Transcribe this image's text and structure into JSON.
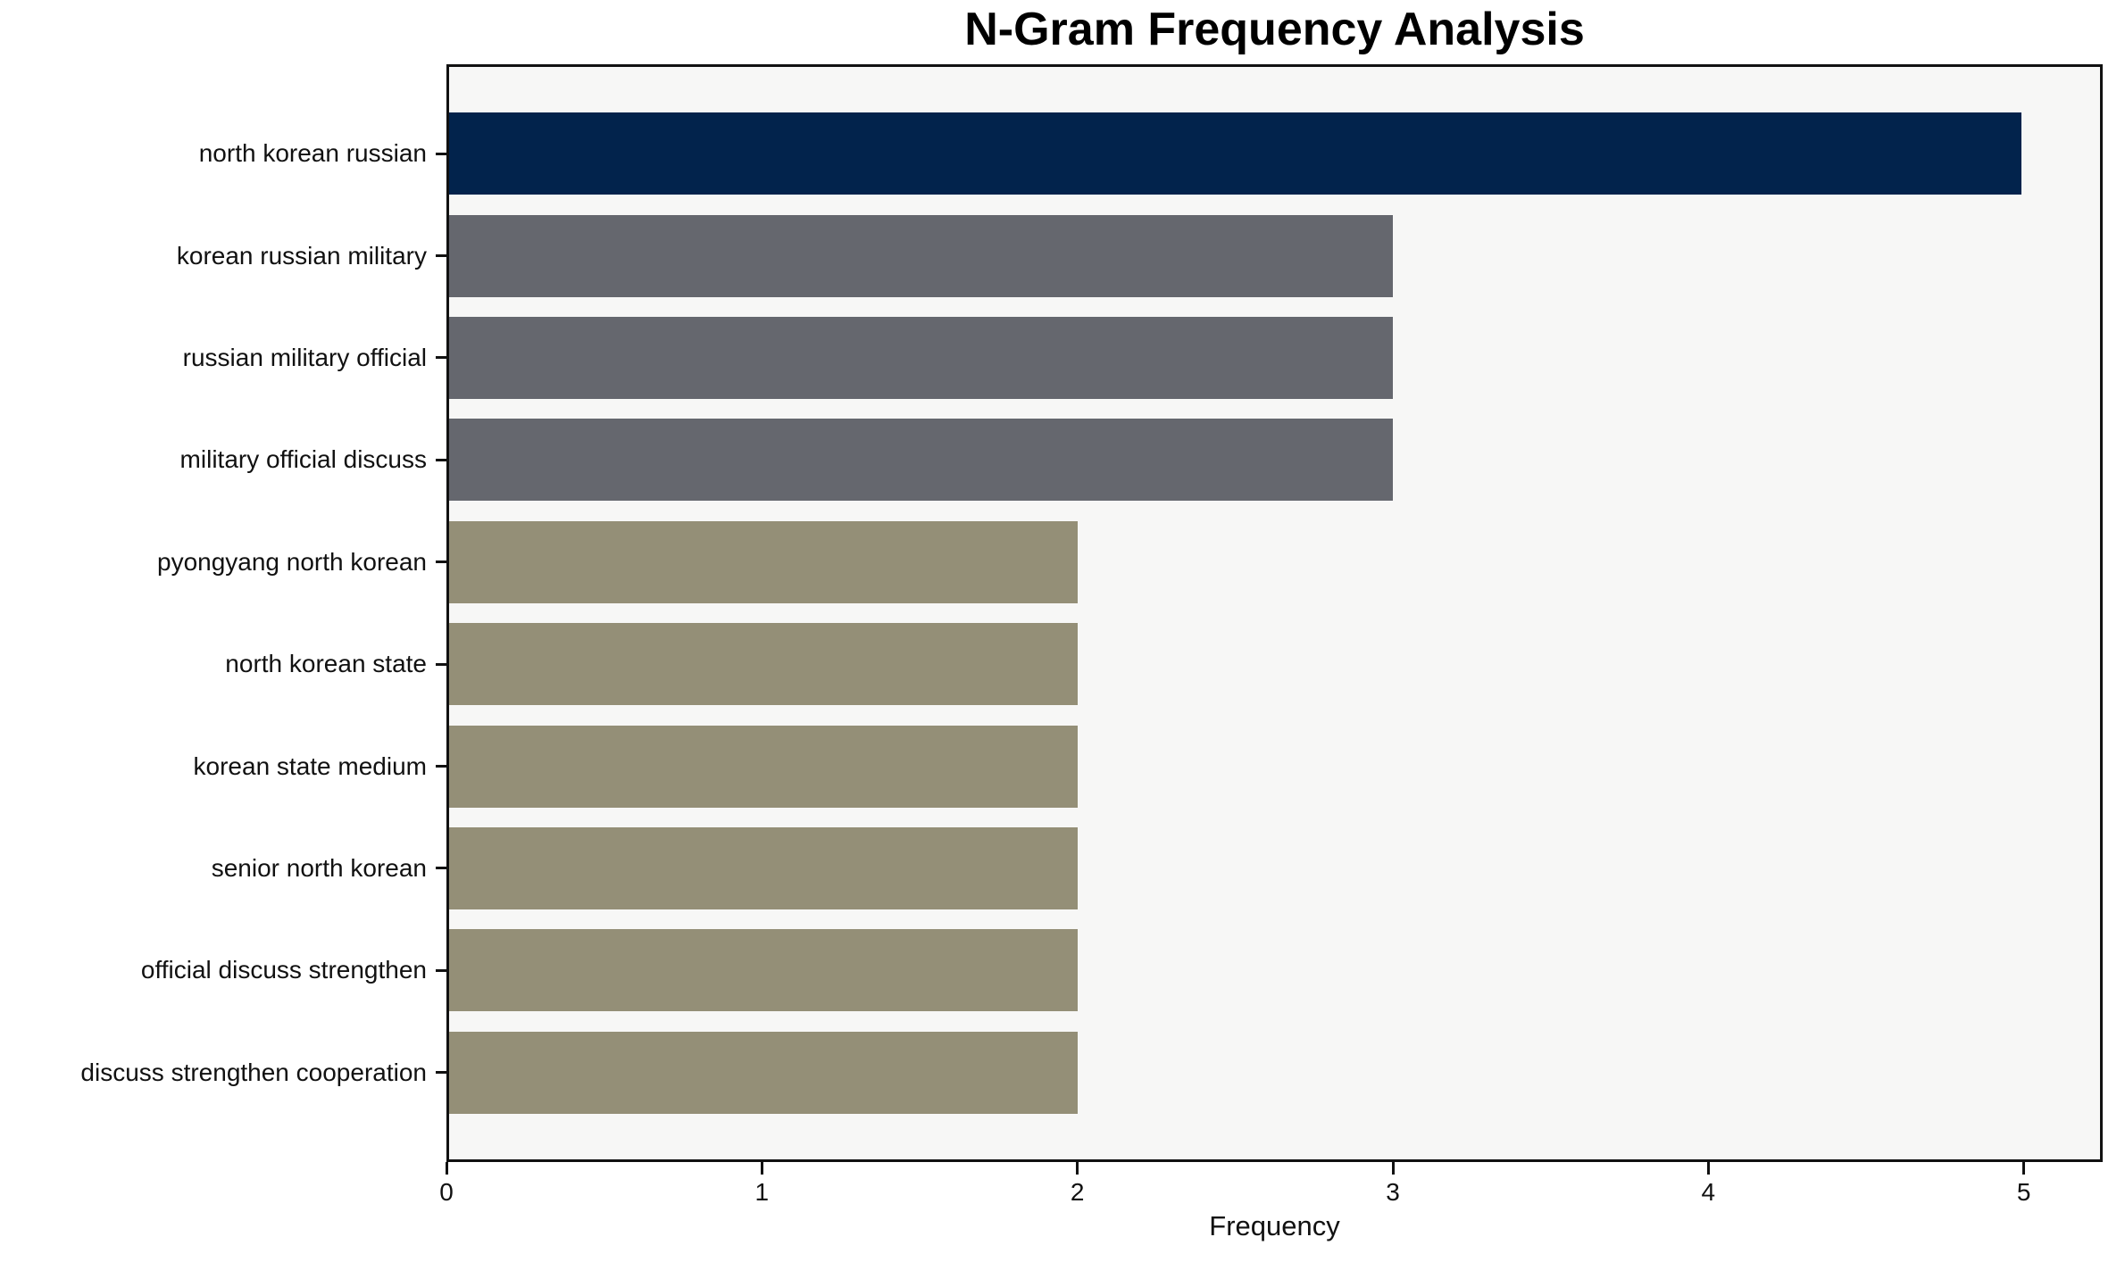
{
  "chart_data": {
    "type": "bar",
    "orientation": "horizontal",
    "title": "N-Gram Frequency Analysis",
    "xlabel": "Frequency",
    "ylabel": "",
    "categories": [
      "north korean russian",
      "korean russian military",
      "russian military official",
      "military official discuss",
      "pyongyang north korean",
      "north korean state",
      "korean state medium",
      "senior north korean",
      "official discuss strengthen",
      "discuss strengthen cooperation"
    ],
    "values": [
      5,
      3,
      3,
      3,
      2,
      2,
      2,
      2,
      2,
      2
    ],
    "bar_colors": [
      "#02234c",
      "#65676e",
      "#65676e",
      "#65676e",
      "#948f77",
      "#948f77",
      "#948f77",
      "#948f77",
      "#948f77",
      "#948f77"
    ],
    "xticks": [
      0,
      1,
      2,
      3,
      4,
      5
    ],
    "xlim": [
      0,
      5.25
    ],
    "grid": false,
    "legend": null,
    "colors": {
      "plot_background": "#f7f7f6",
      "figure_background": "#ffffff",
      "frame": "#111111",
      "text": "#111111"
    }
  }
}
